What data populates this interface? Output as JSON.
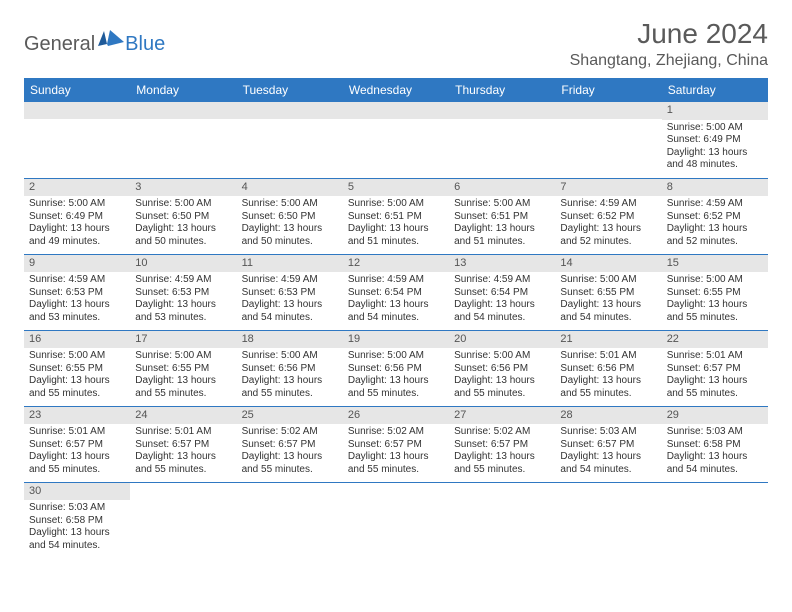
{
  "logo": {
    "general": "General",
    "blue": "Blue"
  },
  "header": {
    "month_title": "June 2024",
    "location": "Shangtang, Zhejiang, China"
  },
  "colors": {
    "brand_blue": "#2f78c2",
    "gray_bar": "#e6e6e6",
    "text_gray": "#5a5a5a"
  },
  "day_headers": [
    "Sunday",
    "Monday",
    "Tuesday",
    "Wednesday",
    "Thursday",
    "Friday",
    "Saturday"
  ],
  "weeks": [
    [
      {
        "n": "",
        "sr": "",
        "ss": "",
        "dl": ""
      },
      {
        "n": "",
        "sr": "",
        "ss": "",
        "dl": ""
      },
      {
        "n": "",
        "sr": "",
        "ss": "",
        "dl": ""
      },
      {
        "n": "",
        "sr": "",
        "ss": "",
        "dl": ""
      },
      {
        "n": "",
        "sr": "",
        "ss": "",
        "dl": ""
      },
      {
        "n": "",
        "sr": "",
        "ss": "",
        "dl": ""
      },
      {
        "n": "1",
        "sr": "Sunrise: 5:00 AM",
        "ss": "Sunset: 6:49 PM",
        "dl": "Daylight: 13 hours and 48 minutes."
      }
    ],
    [
      {
        "n": "2",
        "sr": "Sunrise: 5:00 AM",
        "ss": "Sunset: 6:49 PM",
        "dl": "Daylight: 13 hours and 49 minutes."
      },
      {
        "n": "3",
        "sr": "Sunrise: 5:00 AM",
        "ss": "Sunset: 6:50 PM",
        "dl": "Daylight: 13 hours and 50 minutes."
      },
      {
        "n": "4",
        "sr": "Sunrise: 5:00 AM",
        "ss": "Sunset: 6:50 PM",
        "dl": "Daylight: 13 hours and 50 minutes."
      },
      {
        "n": "5",
        "sr": "Sunrise: 5:00 AM",
        "ss": "Sunset: 6:51 PM",
        "dl": "Daylight: 13 hours and 51 minutes."
      },
      {
        "n": "6",
        "sr": "Sunrise: 5:00 AM",
        "ss": "Sunset: 6:51 PM",
        "dl": "Daylight: 13 hours and 51 minutes."
      },
      {
        "n": "7",
        "sr": "Sunrise: 4:59 AM",
        "ss": "Sunset: 6:52 PM",
        "dl": "Daylight: 13 hours and 52 minutes."
      },
      {
        "n": "8",
        "sr": "Sunrise: 4:59 AM",
        "ss": "Sunset: 6:52 PM",
        "dl": "Daylight: 13 hours and 52 minutes."
      }
    ],
    [
      {
        "n": "9",
        "sr": "Sunrise: 4:59 AM",
        "ss": "Sunset: 6:53 PM",
        "dl": "Daylight: 13 hours and 53 minutes."
      },
      {
        "n": "10",
        "sr": "Sunrise: 4:59 AM",
        "ss": "Sunset: 6:53 PM",
        "dl": "Daylight: 13 hours and 53 minutes."
      },
      {
        "n": "11",
        "sr": "Sunrise: 4:59 AM",
        "ss": "Sunset: 6:53 PM",
        "dl": "Daylight: 13 hours and 54 minutes."
      },
      {
        "n": "12",
        "sr": "Sunrise: 4:59 AM",
        "ss": "Sunset: 6:54 PM",
        "dl": "Daylight: 13 hours and 54 minutes."
      },
      {
        "n": "13",
        "sr": "Sunrise: 4:59 AM",
        "ss": "Sunset: 6:54 PM",
        "dl": "Daylight: 13 hours and 54 minutes."
      },
      {
        "n": "14",
        "sr": "Sunrise: 5:00 AM",
        "ss": "Sunset: 6:55 PM",
        "dl": "Daylight: 13 hours and 54 minutes."
      },
      {
        "n": "15",
        "sr": "Sunrise: 5:00 AM",
        "ss": "Sunset: 6:55 PM",
        "dl": "Daylight: 13 hours and 55 minutes."
      }
    ],
    [
      {
        "n": "16",
        "sr": "Sunrise: 5:00 AM",
        "ss": "Sunset: 6:55 PM",
        "dl": "Daylight: 13 hours and 55 minutes."
      },
      {
        "n": "17",
        "sr": "Sunrise: 5:00 AM",
        "ss": "Sunset: 6:55 PM",
        "dl": "Daylight: 13 hours and 55 minutes."
      },
      {
        "n": "18",
        "sr": "Sunrise: 5:00 AM",
        "ss": "Sunset: 6:56 PM",
        "dl": "Daylight: 13 hours and 55 minutes."
      },
      {
        "n": "19",
        "sr": "Sunrise: 5:00 AM",
        "ss": "Sunset: 6:56 PM",
        "dl": "Daylight: 13 hours and 55 minutes."
      },
      {
        "n": "20",
        "sr": "Sunrise: 5:00 AM",
        "ss": "Sunset: 6:56 PM",
        "dl": "Daylight: 13 hours and 55 minutes."
      },
      {
        "n": "21",
        "sr": "Sunrise: 5:01 AM",
        "ss": "Sunset: 6:56 PM",
        "dl": "Daylight: 13 hours and 55 minutes."
      },
      {
        "n": "22",
        "sr": "Sunrise: 5:01 AM",
        "ss": "Sunset: 6:57 PM",
        "dl": "Daylight: 13 hours and 55 minutes."
      }
    ],
    [
      {
        "n": "23",
        "sr": "Sunrise: 5:01 AM",
        "ss": "Sunset: 6:57 PM",
        "dl": "Daylight: 13 hours and 55 minutes."
      },
      {
        "n": "24",
        "sr": "Sunrise: 5:01 AM",
        "ss": "Sunset: 6:57 PM",
        "dl": "Daylight: 13 hours and 55 minutes."
      },
      {
        "n": "25",
        "sr": "Sunrise: 5:02 AM",
        "ss": "Sunset: 6:57 PM",
        "dl": "Daylight: 13 hours and 55 minutes."
      },
      {
        "n": "26",
        "sr": "Sunrise: 5:02 AM",
        "ss": "Sunset: 6:57 PM",
        "dl": "Daylight: 13 hours and 55 minutes."
      },
      {
        "n": "27",
        "sr": "Sunrise: 5:02 AM",
        "ss": "Sunset: 6:57 PM",
        "dl": "Daylight: 13 hours and 55 minutes."
      },
      {
        "n": "28",
        "sr": "Sunrise: 5:03 AM",
        "ss": "Sunset: 6:57 PM",
        "dl": "Daylight: 13 hours and 54 minutes."
      },
      {
        "n": "29",
        "sr": "Sunrise: 5:03 AM",
        "ss": "Sunset: 6:58 PM",
        "dl": "Daylight: 13 hours and 54 minutes."
      }
    ],
    [
      {
        "n": "30",
        "sr": "Sunrise: 5:03 AM",
        "ss": "Sunset: 6:58 PM",
        "dl": "Daylight: 13 hours and 54 minutes."
      },
      {
        "n": "",
        "sr": "",
        "ss": "",
        "dl": ""
      },
      {
        "n": "",
        "sr": "",
        "ss": "",
        "dl": ""
      },
      {
        "n": "",
        "sr": "",
        "ss": "",
        "dl": ""
      },
      {
        "n": "",
        "sr": "",
        "ss": "",
        "dl": ""
      },
      {
        "n": "",
        "sr": "",
        "ss": "",
        "dl": ""
      },
      {
        "n": "",
        "sr": "",
        "ss": "",
        "dl": ""
      }
    ]
  ]
}
